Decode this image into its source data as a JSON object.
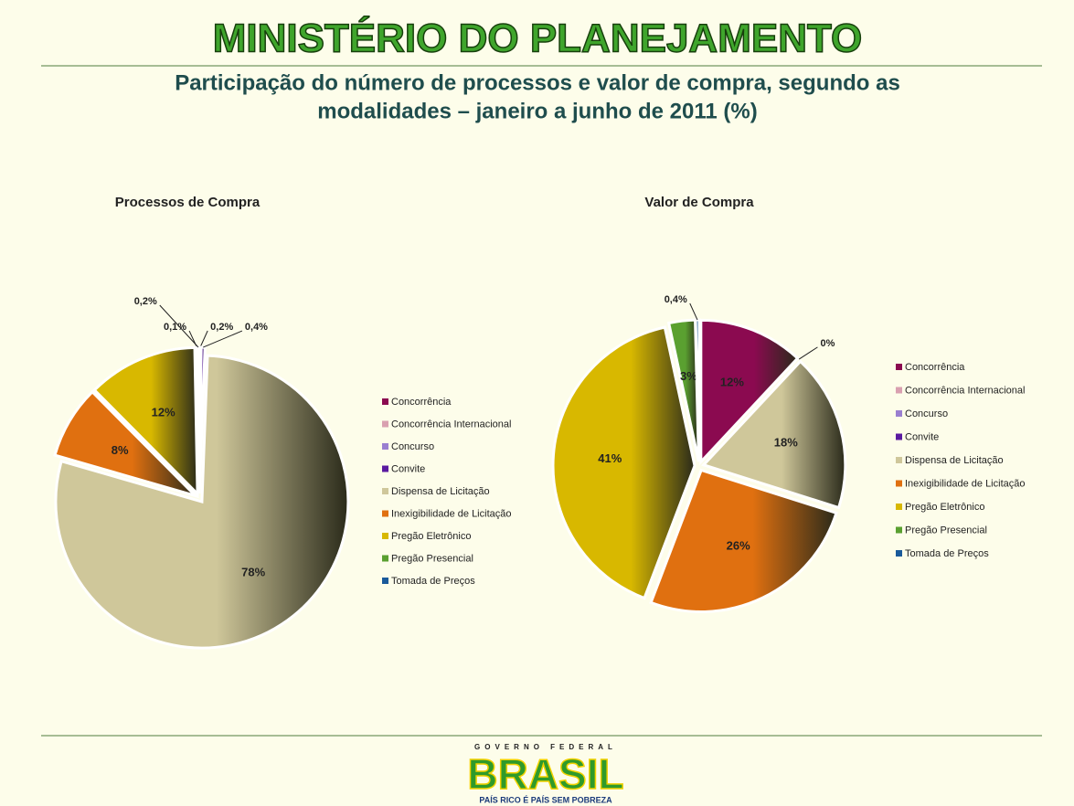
{
  "header": {
    "title": "MINISTÉRIO DO PLANEJAMENTO",
    "subtitle": [
      "Participação do número de processos e valor de compra, segundo as",
      "modalidades – janeiro a junho de 2011 (%)"
    ]
  },
  "chart_data": [
    {
      "type": "pie",
      "title": "Processos de Compra",
      "categories": [
        "Concorrência",
        "Concorrência Internacional",
        "Concurso",
        "Convite",
        "Dispensa de Licitação",
        "Inexigibilidade de Licitação",
        "Pregão Eletrônico",
        "Pregão Presencial",
        "Tomada de Preços"
      ],
      "values": [
        0.2,
        0,
        0,
        0.4,
        78,
        8,
        12,
        0.1,
        0.2
      ],
      "value_labels": [
        "0,2%",
        null,
        null,
        "0,4%",
        "78%",
        "8%",
        "12%",
        "0,1%",
        "0,2%"
      ],
      "colors": [
        "#8b0a50",
        "#d9a0b0",
        "#9a7fd0",
        "#5a1aa0",
        "#cfc79a",
        "#e07010",
        "#d8b800",
        "#5aa030",
        "#1a5a9a"
      ]
    },
    {
      "type": "pie",
      "title": "Valor de Compra",
      "categories": [
        "Concorrência",
        "Concorrência Internacional",
        "Concurso",
        "Convite",
        "Dispensa de Licitação",
        "Inexigibilidade de Licitação",
        "Pregão Eletrônico",
        "Pregão Presencial",
        "Tomada de Preços"
      ],
      "values": [
        12,
        0,
        0,
        0,
        18,
        26,
        41,
        3,
        0.4
      ],
      "value_labels": [
        "12%",
        "0%",
        null,
        null,
        "18%",
        "26%",
        "41%",
        "3%",
        "0,4%"
      ],
      "colors": [
        "#8b0a50",
        "#d9a0b0",
        "#9a7fd0",
        "#5a1aa0",
        "#cfc79a",
        "#e07010",
        "#d8b800",
        "#5aa030",
        "#1a5a9a"
      ]
    }
  ],
  "footer": {
    "top": "GOVERNO FEDERAL",
    "brand": "BRASIL",
    "slogan": "PAÍS RICO É PAÍS SEM POBREZA"
  }
}
